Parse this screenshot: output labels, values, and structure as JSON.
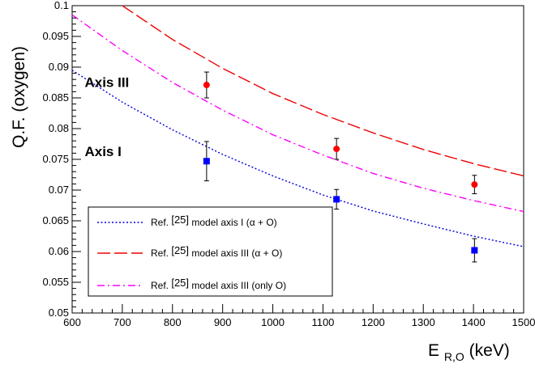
{
  "chart_data": {
    "type": "scatter",
    "xlabel": "E",
    "xlabel_sub": "R,O",
    "xlabel_unit": "(keV)",
    "ylabel": "Q.F. (oxygen)",
    "xlim": [
      600,
      1500
    ],
    "ylim": [
      0.05,
      0.1
    ],
    "x_ticks": [
      600,
      700,
      800,
      900,
      1000,
      1100,
      1200,
      1300,
      1400,
      1500
    ],
    "y_ticks": [
      0.05,
      0.055,
      0.06,
      0.065,
      0.07,
      0.075,
      0.08,
      0.085,
      0.09,
      0.095,
      0.1
    ],
    "x_tick_labels": [
      "600",
      "700",
      "800",
      "900",
      "1000",
      "1100",
      "1200",
      "1300",
      "1400",
      "1500"
    ],
    "y_tick_labels": [
      "0.05",
      "0.055",
      "0.06",
      "0.065",
      "0.07",
      "0.075",
      "0.08",
      "0.085",
      "0.09",
      "0.095",
      "0.1"
    ],
    "grid": false,
    "legend_position": "bottom-left",
    "annotations": [
      {
        "text": "Axis III",
        "x": 625,
        "y": 0.0868
      },
      {
        "text": "Axis I",
        "x": 625,
        "y": 0.0755
      }
    ],
    "points": [
      {
        "marker": "circle",
        "color": "#ff0000",
        "values": [
          {
            "x": 868,
            "y": 0.0871,
            "err": 0.0021
          },
          {
            "x": 1127,
            "y": 0.0767,
            "err": 0.0017
          },
          {
            "x": 1402,
            "y": 0.0709,
            "err": 0.0015
          }
        ]
      },
      {
        "marker": "square",
        "color": "#0000ff",
        "values": [
          {
            "x": 868,
            "y": 0.0747,
            "err": 0.0032
          },
          {
            "x": 1127,
            "y": 0.0685,
            "err": 0.0016
          },
          {
            "x": 1402,
            "y": 0.0602,
            "err": 0.0019
          }
        ]
      }
    ],
    "series": [
      {
        "name": "model axis I (α + O)",
        "color": "#0000dd",
        "dash": "dotted",
        "x": [
          600,
          700,
          800,
          900,
          1000,
          1100,
          1200,
          1300,
          1400,
          1500
        ],
        "y": [
          0.0895,
          0.0843,
          0.0798,
          0.0758,
          0.0723,
          0.0692,
          0.0666,
          0.0645,
          0.0625,
          0.0608
        ]
      },
      {
        "name": "model axis III (α + O)",
        "color": "#ee0000",
        "dash": "longdash",
        "x": [
          700,
          800,
          900,
          1000,
          1100,
          1200,
          1300,
          1400,
          1500
        ],
        "y": [
          0.1,
          0.0945,
          0.0898,
          0.0857,
          0.0823,
          0.0793,
          0.0766,
          0.0743,
          0.0723
        ]
      },
      {
        "name": "model axis III (only O)",
        "color": "#ff00ff",
        "dash": "dashdot",
        "x": [
          600,
          700,
          800,
          900,
          1000,
          1100,
          1200,
          1300,
          1400,
          1500
        ],
        "y": [
          0.0985,
          0.0927,
          0.0875,
          0.083,
          0.079,
          0.0757,
          0.0727,
          0.0703,
          0.0683,
          0.0665
        ]
      }
    ],
    "legend_entries": [
      {
        "prefix": "Ref. ",
        "ref": "[25]",
        "suffix": " model axis I (α + O)",
        "color": "#0000dd",
        "dash": "dotted"
      },
      {
        "prefix": "Ref. ",
        "ref": "[25]",
        "suffix": " model axis III (α + O)",
        "color": "#ee0000",
        "dash": "longdash"
      },
      {
        "prefix": "Ref. ",
        "ref": "[25]",
        "suffix": " model axis III (only O)",
        "color": "#ff00ff",
        "dash": "dashdot"
      }
    ]
  }
}
